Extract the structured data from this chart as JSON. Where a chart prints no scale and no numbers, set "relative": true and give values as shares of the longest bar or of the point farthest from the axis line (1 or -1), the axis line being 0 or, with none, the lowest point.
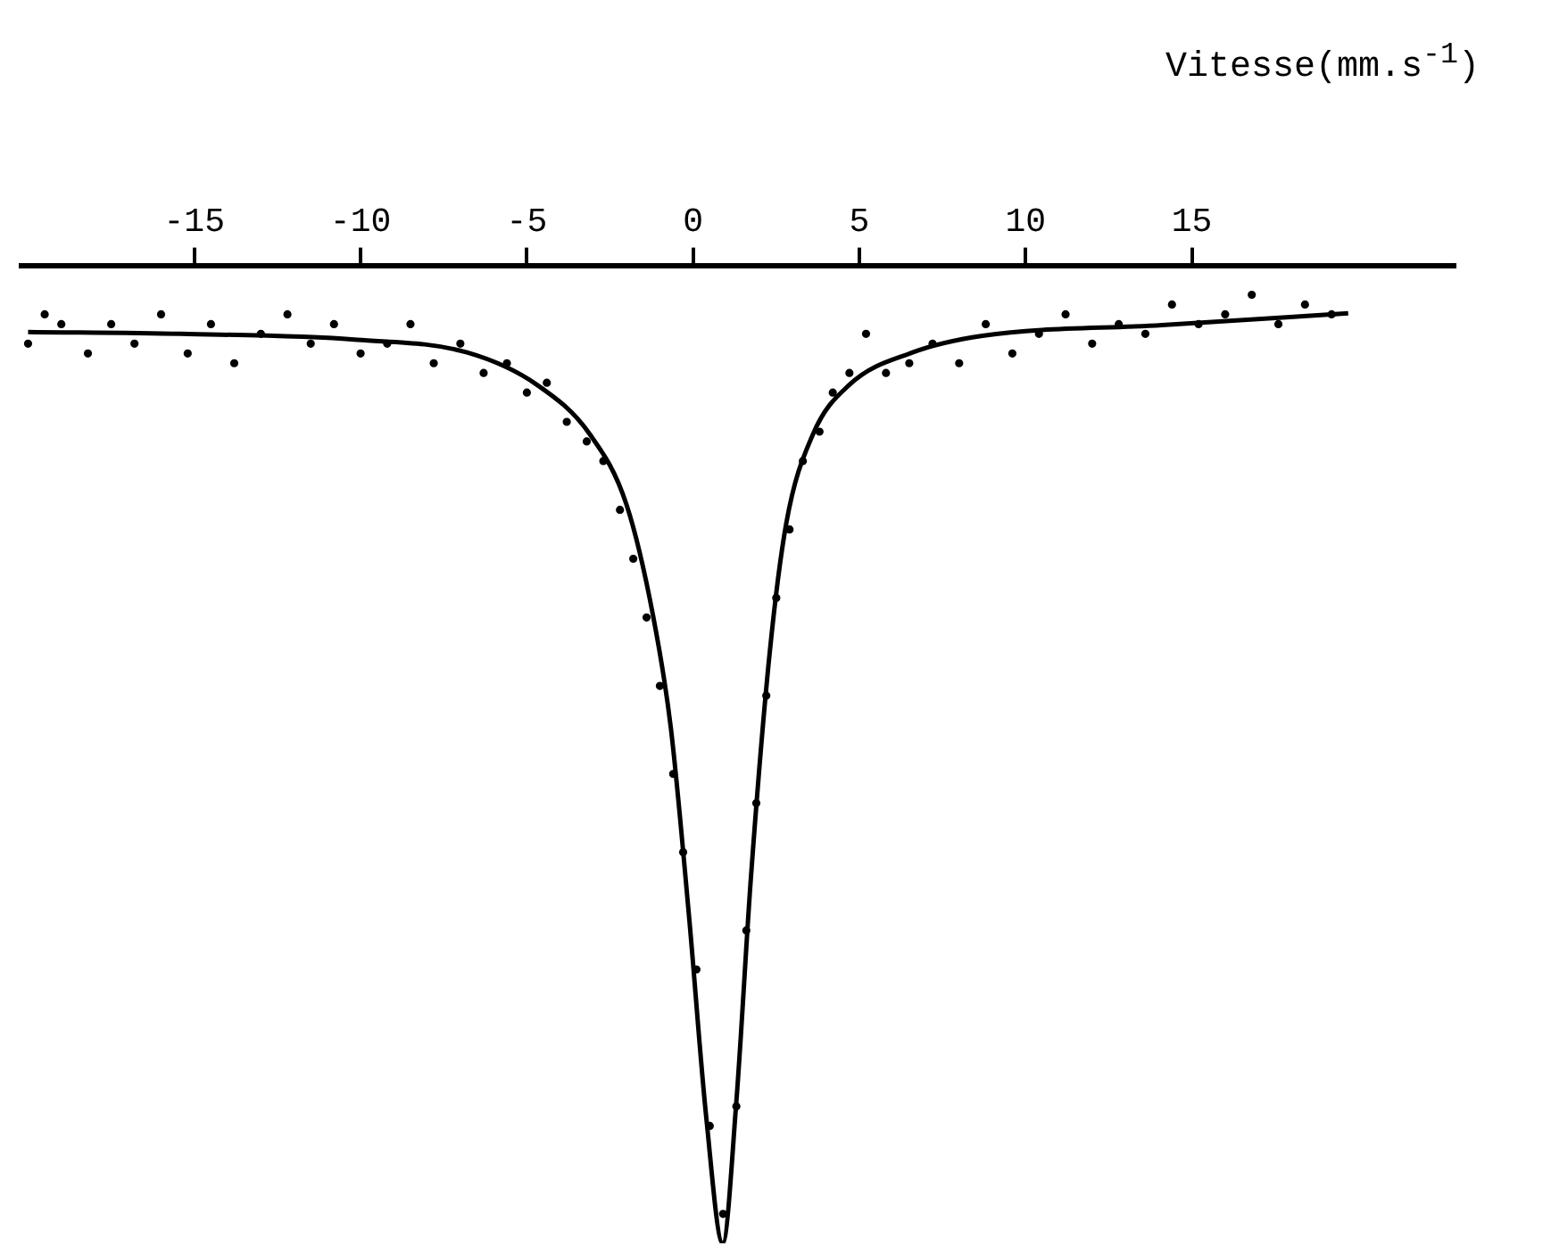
{
  "chart_data": {
    "type": "line",
    "relative": true,
    "xlabel": "Vitesse(mm.s$^{-1}$)",
    "xlim": [
      -20.2,
      22.9
    ],
    "xticks": [
      -15,
      -10,
      -5,
      0,
      5,
      10,
      15
    ],
    "grid": false,
    "legend": false,
    "series": [
      {
        "type": "scatter",
        "marker": "circle",
        "color": "#000000",
        "x": [
          -20,
          -19.5,
          -19,
          -18.2,
          -17.5,
          -16.8,
          -16,
          -15.2,
          -14.5,
          -13.8,
          -13,
          -12.2,
          -11.5,
          -10.8,
          -10,
          -9.2,
          -8.5,
          -7.8,
          -7,
          -6.3,
          -5.6,
          -5,
          -4.4,
          -3.8,
          -3.2,
          -2.7,
          -2.2,
          -1.8,
          -1.4,
          -1.0,
          -0.6,
          -0.3,
          0.1,
          0.5,
          0.9,
          1.3,
          1.6,
          1.9,
          2.2,
          2.5,
          2.9,
          3.3,
          3.8,
          4.2,
          4.7,
          5.2,
          5.8,
          6.5,
          7.2,
          8,
          8.8,
          9.6,
          10.4,
          11.2,
          12,
          12.8,
          13.6,
          14.4,
          15.2,
          16,
          16.8,
          17.6,
          18.4,
          19.2
        ],
        "values": [
          -0.08,
          -0.05,
          -0.06,
          -0.09,
          -0.06,
          -0.08,
          -0.05,
          -0.09,
          -0.06,
          -0.1,
          -0.07,
          -0.05,
          -0.08,
          -0.06,
          -0.09,
          -0.08,
          -0.06,
          -0.1,
          -0.08,
          -0.11,
          -0.1,
          -0.13,
          -0.12,
          -0.16,
          -0.18,
          -0.2,
          -0.25,
          -0.3,
          -0.36,
          -0.43,
          -0.52,
          -0.6,
          -0.72,
          -0.88,
          -0.97,
          -0.86,
          -0.68,
          -0.55,
          -0.44,
          -0.34,
          -0.27,
          -0.2,
          -0.17,
          -0.13,
          -0.11,
          -0.07,
          -0.11,
          -0.1,
          -0.08,
          -0.1,
          -0.06,
          -0.09,
          -0.07,
          -0.05,
          -0.08,
          -0.06,
          -0.07,
          -0.04,
          -0.06,
          -0.05,
          -0.03,
          -0.06,
          -0.04,
          -0.05
        ]
      },
      {
        "marker": "none",
        "line_style": "solid",
        "color": "#000000",
        "x": [
          -20,
          -15.4,
          -10.1,
          -6.8,
          -4.7,
          -3.1,
          -2.0,
          -1.2,
          -0.67,
          -0.13,
          0.4,
          0.89,
          1.3,
          1.74,
          2.3,
          2.8,
          3.6,
          4.7,
          6.6,
          8.7,
          14.1,
          19.7
        ],
        "values": [
          -0.068,
          -0.07,
          -0.076,
          -0.089,
          -0.122,
          -0.173,
          -0.245,
          -0.359,
          -0.473,
          -0.663,
          -0.873,
          -1,
          -0.855,
          -0.625,
          -0.397,
          -0.264,
          -0.173,
          -0.122,
          -0.089,
          -0.072,
          -0.061,
          -0.049
        ]
      }
    ]
  }
}
